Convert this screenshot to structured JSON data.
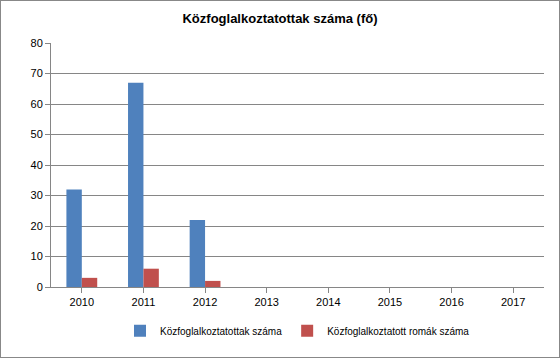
{
  "chart_data": {
    "type": "bar",
    "title": "Közfoglalkoztatottak száma (fő)",
    "categories": [
      "2010",
      "2011",
      "2012",
      "2013",
      "2014",
      "2015",
      "2016",
      "2017"
    ],
    "series": [
      {
        "name": "Közfoglalkoztatottak száma",
        "color": "#4f81bd",
        "values": [
          32,
          67,
          22,
          null,
          null,
          null,
          null,
          null
        ]
      },
      {
        "name": "Közfoglalkoztatott romák száma",
        "color": "#c0504d",
        "values": [
          3,
          6,
          2,
          null,
          null,
          null,
          null,
          null
        ]
      }
    ],
    "ylim": [
      0,
      80
    ],
    "yticks": [
      0,
      10,
      20,
      30,
      40,
      50,
      60,
      70,
      80
    ],
    "grid": true,
    "legend": "bottom"
  }
}
